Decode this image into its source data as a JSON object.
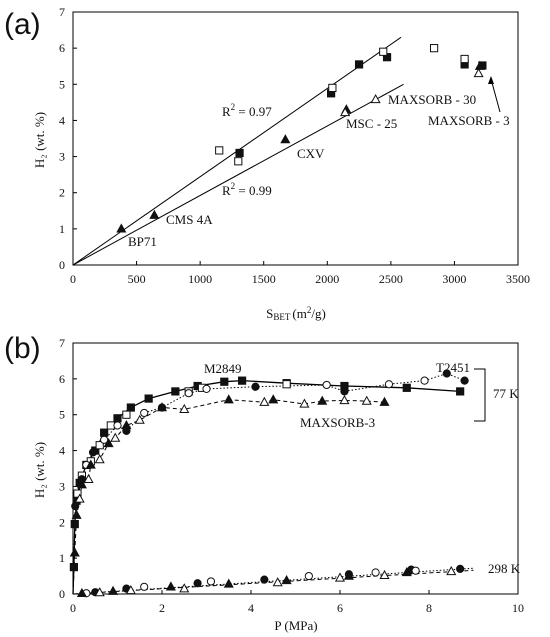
{
  "chart_data": [
    {
      "panel": "(a)",
      "type": "scatter",
      "xlabel_main": "S",
      "xlabel_sub": "BET",
      "xlabel_unit": "(m",
      "xlabel_sup": "2",
      "xlabel_tail": "/g)",
      "ylabel": "H₂ (wt. %)",
      "xlim": [
        0,
        3500
      ],
      "ylim": [
        0,
        7
      ],
      "xticks": [
        0,
        500,
        1000,
        1500,
        2000,
        2500,
        3000,
        3500
      ],
      "yticks": [
        0,
        1,
        2,
        3,
        4,
        5,
        6,
        7
      ],
      "series": [
        {
          "marker": "filled-triangle",
          "points": [
            [
              380,
              1.0
            ],
            [
              640,
              1.38
            ],
            [
              1670,
              3.47
            ],
            [
              2150,
              4.3
            ],
            [
              3200,
              5.5
            ]
          ]
        },
        {
          "marker": "open-triangle",
          "points": [
            [
              2140,
              4.22
            ],
            [
              2380,
              4.58
            ],
            [
              3190,
              5.3
            ]
          ]
        },
        {
          "marker": "filled-square",
          "points": [
            [
              1310,
              3.1
            ],
            [
              2030,
              4.75
            ],
            [
              2250,
              5.55
            ],
            [
              2470,
              5.75
            ],
            [
              3220,
              5.52
            ],
            [
              3080,
              5.55
            ]
          ]
        },
        {
          "marker": "open-square",
          "points": [
            [
              1150,
              3.17
            ],
            [
              1300,
              2.87
            ],
            [
              2040,
              4.9
            ],
            [
              2440,
              5.9
            ],
            [
              2840,
              6.0
            ],
            [
              3080,
              5.7
            ]
          ]
        }
      ],
      "fit_lines": [
        {
          "r2_label": "R",
          "r2_sup": "2",
          "r2_value": " = 0.97",
          "from": [
            0,
            0
          ],
          "to": [
            2580,
            6.3
          ]
        },
        {
          "r2_label": "R",
          "r2_sup": "2",
          "r2_value": " = 0.99",
          "from": [
            0,
            0
          ],
          "to": [
            2600,
            5.0
          ]
        }
      ],
      "annotations": {
        "bp71": "BP71",
        "cms4a": "CMS 4A",
        "cxv": "CXV",
        "msc25": "MSC - 25",
        "maxsorb30": "MAXSORB - 30",
        "maxsorb3": "MAXSORB - 3"
      }
    },
    {
      "panel": "(b)",
      "type": "scatter",
      "xlabel": "P (MPa)",
      "ylabel": "H₂ (wt. %)",
      "xlim": [
        0,
        10
      ],
      "ylim": [
        0,
        7
      ],
      "xticks": [
        0,
        2,
        4,
        6,
        8,
        10
      ],
      "yticks": [
        0,
        1,
        2,
        3,
        4,
        5,
        6,
        7
      ],
      "series": [
        {
          "name": "M2849",
          "marker": "filled-square",
          "points": [
            [
              0.02,
              0.75
            ],
            [
              0.04,
              1.95
            ],
            [
              0.08,
              2.6
            ],
            [
              0.15,
              3.1
            ],
            [
              0.3,
              3.6
            ],
            [
              0.5,
              4.0
            ],
            [
              0.7,
              4.5
            ],
            [
              1.0,
              4.9
            ],
            [
              1.3,
              5.2
            ],
            [
              1.7,
              5.45
            ],
            [
              2.3,
              5.65
            ],
            [
              2.8,
              5.8
            ],
            [
              3.4,
              5.92
            ],
            [
              3.8,
              5.95
            ],
            [
              4.8,
              5.88
            ],
            [
              6.1,
              5.8
            ],
            [
              7.5,
              5.75
            ],
            [
              8.7,
              5.65
            ]
          ]
        },
        {
          "name": "M2849 open",
          "marker": "open-square",
          "points": [
            [
              0.1,
              2.8
            ],
            [
              0.2,
              3.3
            ],
            [
              0.4,
              3.7
            ],
            [
              0.6,
              4.15
            ],
            [
              0.85,
              4.7
            ],
            [
              1.2,
              5.0
            ],
            [
              2.6,
              5.65
            ],
            [
              2.9,
              5.75
            ],
            [
              4.8,
              5.85
            ]
          ]
        },
        {
          "name": "T2451",
          "marker": "filled-circle",
          "points": [
            [
              0.05,
              2.45
            ],
            [
              0.2,
              3.2
            ],
            [
              0.45,
              3.95
            ],
            [
              1.2,
              4.55
            ],
            [
              2.0,
              5.2
            ],
            [
              4.1,
              5.78
            ],
            [
              6.1,
              5.65
            ],
            [
              8.4,
              6.15
            ],
            [
              8.8,
              5.95
            ]
          ]
        },
        {
          "name": "T2451 open",
          "marker": "open-circle",
          "points": [
            [
              0.3,
              3.6
            ],
            [
              0.7,
              4.3
            ],
            [
              1.0,
              4.7
            ],
            [
              1.6,
              5.05
            ],
            [
              2.6,
              5.6
            ],
            [
              3.0,
              5.72
            ],
            [
              5.7,
              5.83
            ],
            [
              7.1,
              5.85
            ],
            [
              7.9,
              5.95
            ]
          ]
        },
        {
          "name": "MAXSORB-3",
          "marker": "filled-triangle",
          "points": [
            [
              0.04,
              1.15
            ],
            [
              0.08,
              2.2
            ],
            [
              0.2,
              3.05
            ],
            [
              0.4,
              3.6
            ],
            [
              0.8,
              4.2
            ],
            [
              1.2,
              4.7
            ],
            [
              2.0,
              5.2
            ],
            [
              3.5,
              5.42
            ],
            [
              4.5,
              5.42
            ],
            [
              5.6,
              5.38
            ],
            [
              7.0,
              5.35
            ]
          ]
        },
        {
          "name": "MAXSORB-3 open",
          "marker": "open-triangle",
          "points": [
            [
              0.15,
              2.65
            ],
            [
              0.35,
              3.2
            ],
            [
              0.6,
              3.75
            ],
            [
              0.95,
              4.35
            ],
            [
              1.5,
              4.85
            ],
            [
              2.5,
              5.15
            ],
            [
              4.3,
              5.35
            ],
            [
              5.2,
              5.3
            ],
            [
              6.1,
              5.4
            ],
            [
              6.6,
              5.38
            ]
          ]
        },
        {
          "name": "298K filled-circle",
          "marker": "filled-circle",
          "points": [
            [
              0.5,
              0.05
            ],
            [
              1.2,
              0.15
            ],
            [
              2.8,
              0.3
            ],
            [
              4.3,
              0.4
            ],
            [
              6.2,
              0.55
            ],
            [
              7.6,
              0.68
            ],
            [
              8.7,
              0.7
            ]
          ]
        },
        {
          "name": "298K open-circle",
          "marker": "open-circle",
          "points": [
            [
              0.3,
              0.02
            ],
            [
              1.6,
              0.2
            ],
            [
              3.1,
              0.35
            ],
            [
              5.3,
              0.5
            ],
            [
              6.8,
              0.6
            ],
            [
              7.7,
              0.65
            ]
          ]
        },
        {
          "name": "298K filled-triangle",
          "marker": "filled-triangle",
          "points": [
            [
              0.2,
              0.02
            ],
            [
              0.9,
              0.08
            ],
            [
              2.2,
              0.2
            ],
            [
              3.5,
              0.28
            ],
            [
              4.8,
              0.38
            ],
            [
              6.2,
              0.5
            ],
            [
              7.5,
              0.6
            ]
          ]
        },
        {
          "name": "298K open-triangle",
          "marker": "open-triangle",
          "points": [
            [
              0.6,
              0.04
            ],
            [
              1.3,
              0.1
            ],
            [
              2.5,
              0.15
            ],
            [
              4.6,
              0.32
            ],
            [
              6.0,
              0.45
            ],
            [
              7.0,
              0.52
            ],
            [
              8.5,
              0.63
            ]
          ]
        }
      ],
      "annotations": {
        "m2849": "M2849",
        "t2451": "T2451",
        "maxsorb3": "MAXSORB-3",
        "k77": "77 K",
        "k298": "298 K"
      }
    }
  ]
}
